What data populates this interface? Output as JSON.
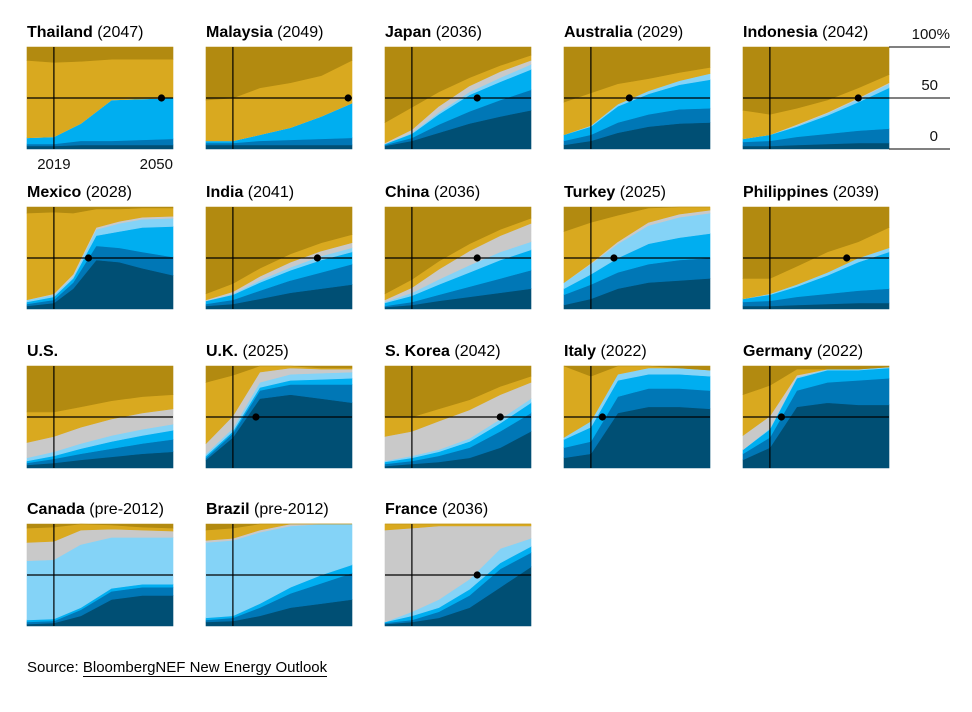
{
  "chart_data": {
    "type": "area",
    "layout": "small multiples, 5 columns x 4 rows",
    "x_ticks": [
      "2019",
      "2050"
    ],
    "x_range": [
      2012,
      2050
    ],
    "y_ticks": [
      "100%",
      "50",
      "0"
    ],
    "ylim": [
      0,
      100
    ],
    "colors": [
      "#004f74",
      "#0077b6",
      "#00aef0",
      "#84d3f7",
      "#c9c9c9",
      "#d9a91f",
      "#b28a10"
    ],
    "panels": [
      {
        "name": "Thailand",
        "note": "(2047)",
        "cross_year": 2047,
        "x": [
          2012,
          2019,
          2026,
          2034,
          2042,
          2050
        ],
        "bands": [
          [
            3,
            3,
            4,
            4,
            4,
            4
          ],
          [
            2,
            2,
            4,
            4,
            5,
            6
          ],
          [
            6,
            7,
            17,
            40,
            40,
            40
          ],
          [
            0,
            0,
            0,
            0,
            0,
            0
          ],
          [
            0,
            0,
            0,
            0,
            0,
            0
          ],
          [
            76,
            73,
            61,
            40,
            39,
            38
          ],
          [
            13,
            15,
            14,
            12,
            12,
            12
          ]
        ]
      },
      {
        "name": "Malaysia",
        "note": "(2049)",
        "cross_year": 2049,
        "x": [
          2012,
          2019,
          2026,
          2034,
          2042,
          2050
        ],
        "bands": [
          [
            4,
            4,
            4,
            4,
            4,
            4
          ],
          [
            2,
            2,
            4,
            5,
            6,
            7
          ],
          [
            2,
            2,
            6,
            12,
            22,
            34
          ],
          [
            0,
            0,
            0,
            0,
            0,
            0
          ],
          [
            0,
            0,
            0,
            0,
            0,
            0
          ],
          [
            40,
            42,
            46,
            44,
            40,
            42
          ],
          [
            52,
            50,
            40,
            35,
            28,
            13
          ]
        ]
      },
      {
        "name": "Japan",
        "note": "(2036)",
        "cross_year": 2036,
        "x": [
          2012,
          2019,
          2026,
          2034,
          2042,
          2050
        ],
        "bands": [
          [
            3,
            8,
            16,
            25,
            32,
            38
          ],
          [
            1,
            3,
            8,
            12,
            16,
            20
          ],
          [
            1,
            4,
            10,
            16,
            18,
            20
          ],
          [
            0,
            1,
            2,
            3,
            4,
            5
          ],
          [
            1,
            3,
            6,
            6,
            6,
            4
          ],
          [
            20,
            22,
            14,
            8,
            6,
            5
          ],
          [
            74,
            59,
            44,
            30,
            18,
            8
          ]
        ]
      },
      {
        "name": "Australia",
        "note": "(2029)",
        "cross_year": 2029,
        "x": [
          2012,
          2019,
          2026,
          2034,
          2042,
          2050
        ],
        "bands": [
          [
            4,
            8,
            16,
            22,
            25,
            26
          ],
          [
            4,
            6,
            10,
            12,
            14,
            14
          ],
          [
            6,
            8,
            16,
            20,
            24,
            28
          ],
          [
            0,
            1,
            2,
            3,
            4,
            6
          ],
          [
            0,
            0,
            0,
            0,
            0,
            0
          ],
          [
            32,
            32,
            20,
            12,
            8,
            6
          ],
          [
            54,
            45,
            36,
            31,
            25,
            20
          ]
        ]
      },
      {
        "name": "Indonesia",
        "note": "(2042)",
        "cross_year": 2042,
        "x": [
          2012,
          2019,
          2026,
          2034,
          2042,
          2050
        ],
        "bands": [
          [
            3,
            3,
            4,
            5,
            6,
            6
          ],
          [
            4,
            5,
            8,
            10,
            12,
            14
          ],
          [
            3,
            6,
            10,
            18,
            28,
            40
          ],
          [
            0,
            0,
            1,
            2,
            3,
            4
          ],
          [
            0,
            0,
            1,
            1,
            1,
            1
          ],
          [
            28,
            20,
            16,
            12,
            10,
            8
          ],
          [
            62,
            66,
            60,
            52,
            40,
            27
          ]
        ]
      },
      {
        "name": "Mexico",
        "note": "(2028)",
        "cross_year": 2028,
        "x": [
          2012,
          2019,
          2024,
          2030,
          2036,
          2042,
          2050
        ],
        "bands": [
          [
            3,
            6,
            20,
            48,
            46,
            40,
            33
          ],
          [
            2,
            3,
            6,
            14,
            14,
            16,
            18
          ],
          [
            2,
            3,
            4,
            10,
            16,
            24,
            30
          ],
          [
            2,
            2,
            2,
            6,
            8,
            8,
            8
          ],
          [
            0,
            1,
            2,
            2,
            2,
            2,
            2
          ],
          [
            85,
            80,
            60,
            18,
            12,
            9,
            8
          ],
          [
            6,
            5,
            6,
            2,
            2,
            1,
            1
          ]
        ]
      },
      {
        "name": "India",
        "note": "(2041)",
        "cross_year": 2041,
        "x": [
          2012,
          2019,
          2026,
          2034,
          2042,
          2050
        ],
        "bands": [
          [
            3,
            5,
            10,
            16,
            20,
            24
          ],
          [
            2,
            4,
            8,
            12,
            16,
            20
          ],
          [
            3,
            5,
            8,
            10,
            12,
            12
          ],
          [
            0,
            1,
            2,
            3,
            4,
            4
          ],
          [
            1,
            2,
            4,
            5,
            5,
            5
          ],
          [
            6,
            8,
            8,
            8,
            8,
            8
          ],
          [
            85,
            75,
            60,
            46,
            35,
            27
          ]
        ]
      },
      {
        "name": "China",
        "note": "(2036)",
        "cross_year": 2036,
        "x": [
          2012,
          2019,
          2026,
          2034,
          2042,
          2050
        ],
        "bands": [
          [
            2,
            4,
            8,
            12,
            16,
            20
          ],
          [
            1,
            3,
            6,
            10,
            14,
            18
          ],
          [
            3,
            6,
            10,
            14,
            18,
            20
          ],
          [
            1,
            3,
            5,
            7,
            8,
            8
          ],
          [
            2,
            5,
            10,
            14,
            16,
            18
          ],
          [
            6,
            8,
            8,
            7,
            6,
            5
          ],
          [
            85,
            71,
            53,
            36,
            22,
            11
          ]
        ]
      },
      {
        "name": "Turkey",
        "note": "(2025)",
        "cross_year": 2025,
        "x": [
          2012,
          2019,
          2026,
          2034,
          2042,
          2050
        ],
        "bands": [
          [
            4,
            10,
            20,
            26,
            28,
            30
          ],
          [
            10,
            14,
            16,
            18,
            20,
            20
          ],
          [
            6,
            10,
            14,
            20,
            22,
            24
          ],
          [
            6,
            10,
            14,
            18,
            20,
            20
          ],
          [
            0,
            1,
            2,
            3,
            3,
            3
          ],
          [
            50,
            40,
            26,
            14,
            7,
            3
          ],
          [
            24,
            15,
            8,
            1,
            0,
            0
          ]
        ]
      },
      {
        "name": "Philippines",
        "note": "(2039)",
        "cross_year": 2039,
        "x": [
          2012,
          2019,
          2026,
          2034,
          2042,
          2050
        ],
        "bands": [
          [
            3,
            3,
            4,
            5,
            6,
            6
          ],
          [
            4,
            5,
            8,
            10,
            12,
            14
          ],
          [
            3,
            6,
            10,
            18,
            28,
            36
          ],
          [
            0,
            1,
            2,
            3,
            4,
            4
          ],
          [
            0,
            0,
            0,
            0,
            0,
            0
          ],
          [
            20,
            15,
            18,
            20,
            16,
            20
          ],
          [
            70,
            70,
            58,
            44,
            34,
            20
          ]
        ]
      },
      {
        "name": "U.S.",
        "note": "",
        "cross_year": null,
        "x": [
          2012,
          2019,
          2026,
          2034,
          2042,
          2050
        ],
        "bands": [
          [
            3,
            5,
            8,
            11,
            14,
            16
          ],
          [
            2,
            4,
            6,
            8,
            10,
            12
          ],
          [
            2,
            3,
            5,
            7,
            8,
            9
          ],
          [
            3,
            4,
            5,
            6,
            6,
            6
          ],
          [
            15,
            15,
            16,
            16,
            16,
            15
          ],
          [
            30,
            24,
            20,
            18,
            16,
            14
          ],
          [
            45,
            45,
            40,
            34,
            30,
            28
          ]
        ]
      },
      {
        "name": "U.K.",
        "note": "(2025)",
        "cross_year": 2025,
        "x": [
          2012,
          2019,
          2026,
          2034,
          2042,
          2050
        ],
        "bands": [
          [
            8,
            30,
            68,
            72,
            68,
            64
          ],
          [
            2,
            4,
            8,
            10,
            14,
            18
          ],
          [
            2,
            2,
            3,
            4,
            5,
            6
          ],
          [
            2,
            3,
            5,
            6,
            6,
            6
          ],
          [
            10,
            12,
            10,
            6,
            4,
            3
          ],
          [
            60,
            40,
            6,
            2,
            1,
            1
          ],
          [
            16,
            9,
            0,
            0,
            2,
            2
          ]
        ]
      },
      {
        "name": "S. Korea",
        "note": "(2042)",
        "cross_year": 2042,
        "x": [
          2012,
          2019,
          2026,
          2034,
          2042,
          2050
        ],
        "bands": [
          [
            2,
            4,
            6,
            10,
            20,
            36
          ],
          [
            2,
            3,
            6,
            10,
            16,
            18
          ],
          [
            2,
            3,
            4,
            6,
            8,
            10
          ],
          [
            1,
            2,
            2,
            3,
            4,
            4
          ],
          [
            24,
            24,
            28,
            28,
            24,
            16
          ],
          [
            19,
            14,
            12,
            10,
            8,
            6
          ],
          [
            50,
            50,
            42,
            33,
            20,
            10
          ]
        ]
      },
      {
        "name": "Italy",
        "note": "(2022)",
        "cross_year": 2022,
        "x": [
          2012,
          2019,
          2026,
          2034,
          2042,
          2050
        ],
        "bands": [
          [
            10,
            14,
            54,
            60,
            60,
            58
          ],
          [
            10,
            12,
            16,
            18,
            18,
            18
          ],
          [
            8,
            14,
            16,
            14,
            14,
            14
          ],
          [
            2,
            6,
            6,
            6,
            6,
            6
          ],
          [
            0,
            0,
            0,
            0,
            0,
            0
          ],
          [
            70,
            44,
            8,
            2,
            0,
            0
          ],
          [
            0,
            10,
            0,
            0,
            2,
            4
          ]
        ]
      },
      {
        "name": "Germany",
        "note": "(2022)",
        "cross_year": 2022,
        "x": [
          2012,
          2019,
          2026,
          2034,
          2042,
          2050
        ],
        "bands": [
          [
            8,
            20,
            60,
            64,
            62,
            62
          ],
          [
            6,
            10,
            16,
            20,
            24,
            26
          ],
          [
            4,
            8,
            12,
            12,
            10,
            10
          ],
          [
            0,
            1,
            1,
            1,
            1,
            1
          ],
          [
            14,
            12,
            2,
            0,
            0,
            0
          ],
          [
            40,
            30,
            6,
            0,
            0,
            0
          ],
          [
            28,
            19,
            3,
            3,
            3,
            1
          ]
        ]
      },
      {
        "name": "Canada",
        "note": "(pre-2012)",
        "cross_year": null,
        "x": [
          2012,
          2019,
          2026,
          2034,
          2042,
          2050
        ],
        "bands": [
          [
            2,
            3,
            10,
            26,
            30,
            30
          ],
          [
            2,
            2,
            6,
            8,
            8,
            8
          ],
          [
            2,
            2,
            2,
            3,
            3,
            3
          ],
          [
            58,
            58,
            62,
            50,
            46,
            46
          ],
          [
            18,
            18,
            14,
            8,
            7,
            6
          ],
          [
            14,
            14,
            6,
            4,
            3,
            3
          ],
          [
            4,
            3,
            0,
            1,
            3,
            4
          ]
        ]
      },
      {
        "name": "Brazil",
        "note": "(pre-2012)",
        "cross_year": null,
        "x": [
          2012,
          2019,
          2026,
          2034,
          2042,
          2050
        ],
        "bands": [
          [
            4,
            5,
            10,
            18,
            22,
            26
          ],
          [
            2,
            3,
            8,
            14,
            20,
            26
          ],
          [
            2,
            2,
            4,
            6,
            8,
            8
          ],
          [
            74,
            74,
            70,
            60,
            50,
            40
          ],
          [
            2,
            2,
            2,
            2,
            0,
            0
          ],
          [
            10,
            10,
            6,
            0,
            0,
            0
          ],
          [
            6,
            4,
            0,
            0,
            0,
            0
          ]
        ]
      },
      {
        "name": "France",
        "note": "(2036)",
        "cross_year": 2036,
        "x": [
          2012,
          2019,
          2026,
          2034,
          2042,
          2050
        ],
        "bands": [
          [
            2,
            4,
            8,
            18,
            38,
            58
          ],
          [
            1,
            2,
            6,
            12,
            18,
            14
          ],
          [
            1,
            4,
            4,
            6,
            6,
            6
          ],
          [
            0,
            4,
            8,
            10,
            14,
            8
          ],
          [
            90,
            82,
            72,
            52,
            22,
            12
          ],
          [
            6,
            4,
            2,
            2,
            2,
            2
          ],
          [
            0,
            0,
            0,
            0,
            0,
            0
          ]
        ]
      }
    ]
  },
  "source": {
    "label": "Source: ",
    "link": "BloombergNEF New Energy Outlook"
  }
}
